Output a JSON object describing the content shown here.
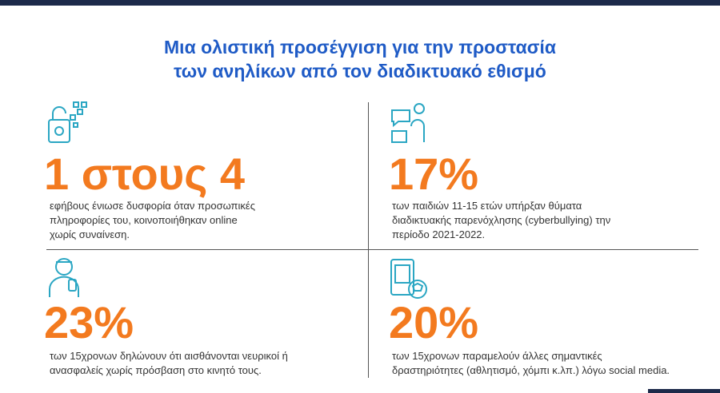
{
  "title": {
    "line1": "Μια ολιστική προσέγγιση για την προστασία",
    "line2": "των ανηλίκων από τον διαδικτυακό εθισμό"
  },
  "stats": [
    {
      "figure": "1 στους 4",
      "lines": [
        "εφήβους ένιωσε δυσφορία όταν προσωπικές",
        "πληροφορίες του, κοινοποιήθηκαν online",
        "χωρίς συναίνεση."
      ]
    },
    {
      "figure": "17%",
      "lines": [
        "των παιδιών 11-15 ετών υπήρξαν θύματα",
        "διαδικτυακής παρενόχλησης (cyberbullying) την",
        "περίοδο 2021-2022."
      ]
    },
    {
      "figure": "23%",
      "lines": [
        "των 15χρονων δηλώνουν ότι αισθάνονται νευρικοί ή",
        "ανασφαλείς χωρίς πρόσβαση στο κινητό τους."
      ]
    },
    {
      "figure": "20%",
      "lines": [
        "των 15χρονων παραμελούν άλλες σημαντικές",
        "δραστηριότητες (αθλητισμό, χόμπι κ.λπ.) λόγω social media."
      ]
    }
  ]
}
